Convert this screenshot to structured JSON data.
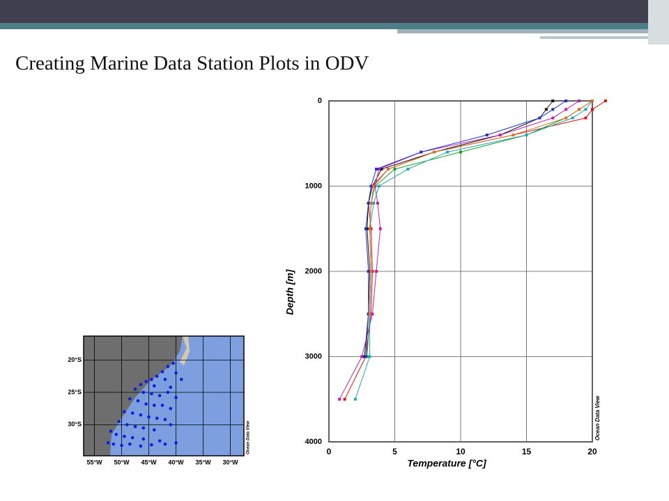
{
  "slide": {
    "title": "Creating Marine Data Station Plots in ODV"
  },
  "chart_data": [
    {
      "type": "scatter",
      "annotation": "Ocean Data View",
      "color": "#0a1fe0",
      "xlim": [
        -57,
        -27.5
      ],
      "ylim": [
        -34.8,
        -16.3
      ],
      "xticks": [
        {
          "value": -55,
          "label": "55°W"
        },
        {
          "value": -50,
          "label": "50°W"
        },
        {
          "value": -45,
          "label": "45°W"
        },
        {
          "value": -40,
          "label": "40°W"
        },
        {
          "value": -35,
          "label": "35°W"
        },
        {
          "value": -30,
          "label": "30°W"
        }
      ],
      "yticks": [
        {
          "value": -20,
          "label": "20°S"
        },
        {
          "value": -25,
          "label": "25°S"
        },
        {
          "value": -30,
          "label": "30°S"
        }
      ],
      "grid": true,
      "x": [
        -40.5,
        -41.5,
        -42.5,
        -40,
        -43.5,
        -44.5,
        -45.5,
        -46.5,
        -42,
        -44,
        -41,
        -47.5,
        -46,
        -44.5,
        -43,
        -41.5,
        -40,
        -48.5,
        -47,
        -45.5,
        -44,
        -42.5,
        -41,
        -49.5,
        -48,
        -46.5,
        -45,
        -43.5,
        -42,
        -50.5,
        -49,
        -47.5,
        -46,
        -44,
        -52,
        -51,
        -49.5,
        -48,
        -46,
        -43,
        -52.5,
        -51.5,
        -50,
        -48.5,
        -46.5,
        -44.5,
        -42,
        -40,
        -39,
        -41
      ],
      "values": [
        -20.5,
        -21,
        -21.8,
        -22,
        -22.5,
        -23,
        -23.3,
        -23.8,
        -23,
        -24,
        -24.2,
        -24.5,
        -25,
        -25.2,
        -25.5,
        -25,
        -25.8,
        -26,
        -26.3,
        -26.8,
        -27,
        -27,
        -27.5,
        -28,
        -28.2,
        -28.5,
        -28.8,
        -29,
        -29.2,
        -29.5,
        -30,
        -30.3,
        -30.5,
        -30.8,
        -31,
        -31.5,
        -31.8,
        -32,
        -32.2,
        -32.5,
        -32.8,
        -33,
        -33.2,
        -33,
        -33.3,
        -33.1,
        -33,
        -32.8,
        -23,
        -30
      ]
    },
    {
      "type": "line",
      "annotation": "Ocean Data View",
      "x_label": "Temperature [°C]",
      "y_label": "Depth [m]",
      "xlim": [
        0,
        20
      ],
      "ylim": [
        0,
        4000
      ],
      "y_inverted": true,
      "xticks": [
        0,
        5,
        10,
        15,
        20
      ],
      "yticks": [
        0,
        1000,
        2000,
        3000,
        4000
      ],
      "grid": true,
      "y": [
        0,
        100,
        200,
        400,
        600,
        800,
        1000,
        1200,
        1500,
        2000,
        2500,
        3000,
        3500
      ],
      "series": [
        {
          "color": "#e01010",
          "values": [
            21,
            20,
            19.5,
            14,
            8,
            4.5,
            3.3,
            3,
            3.2,
            3.3,
            3.2,
            2.8,
            1.2
          ]
        },
        {
          "color": "#18a030",
          "values": [
            20,
            19,
            18,
            15,
            10,
            5,
            3.5,
            3.2,
            3.1,
            3.2,
            3.1,
            2.9,
            null
          ]
        },
        {
          "color": "#111111",
          "values": [
            17,
            16.5,
            16,
            13,
            8,
            4,
            3.3,
            3,
            2.9,
            3.1,
            3,
            2.7,
            null
          ]
        },
        {
          "color": "#c020b0",
          "values": [
            19,
            18,
            17,
            13,
            7,
            3.8,
            3.5,
            3.7,
            3.9,
            3.6,
            3.3,
            2.5,
            0.8
          ]
        },
        {
          "color": "#20a8b0",
          "values": [
            20,
            19.5,
            18.5,
            15,
            9,
            6,
            3.8,
            3.4,
            3.1,
            3.2,
            3.1,
            3.1,
            2.0
          ]
        },
        {
          "color": "#2030d0",
          "values": [
            18,
            17,
            16,
            12,
            7,
            3.6,
            3.2,
            3,
            2.8,
            3,
            3,
            2.8,
            null
          ]
        },
        {
          "color": "#e07020",
          "values": [
            20,
            19,
            18,
            14,
            8,
            4.5,
            3.4,
            3.2,
            3.1,
            3.2,
            3.1,
            null,
            null
          ]
        }
      ]
    }
  ]
}
